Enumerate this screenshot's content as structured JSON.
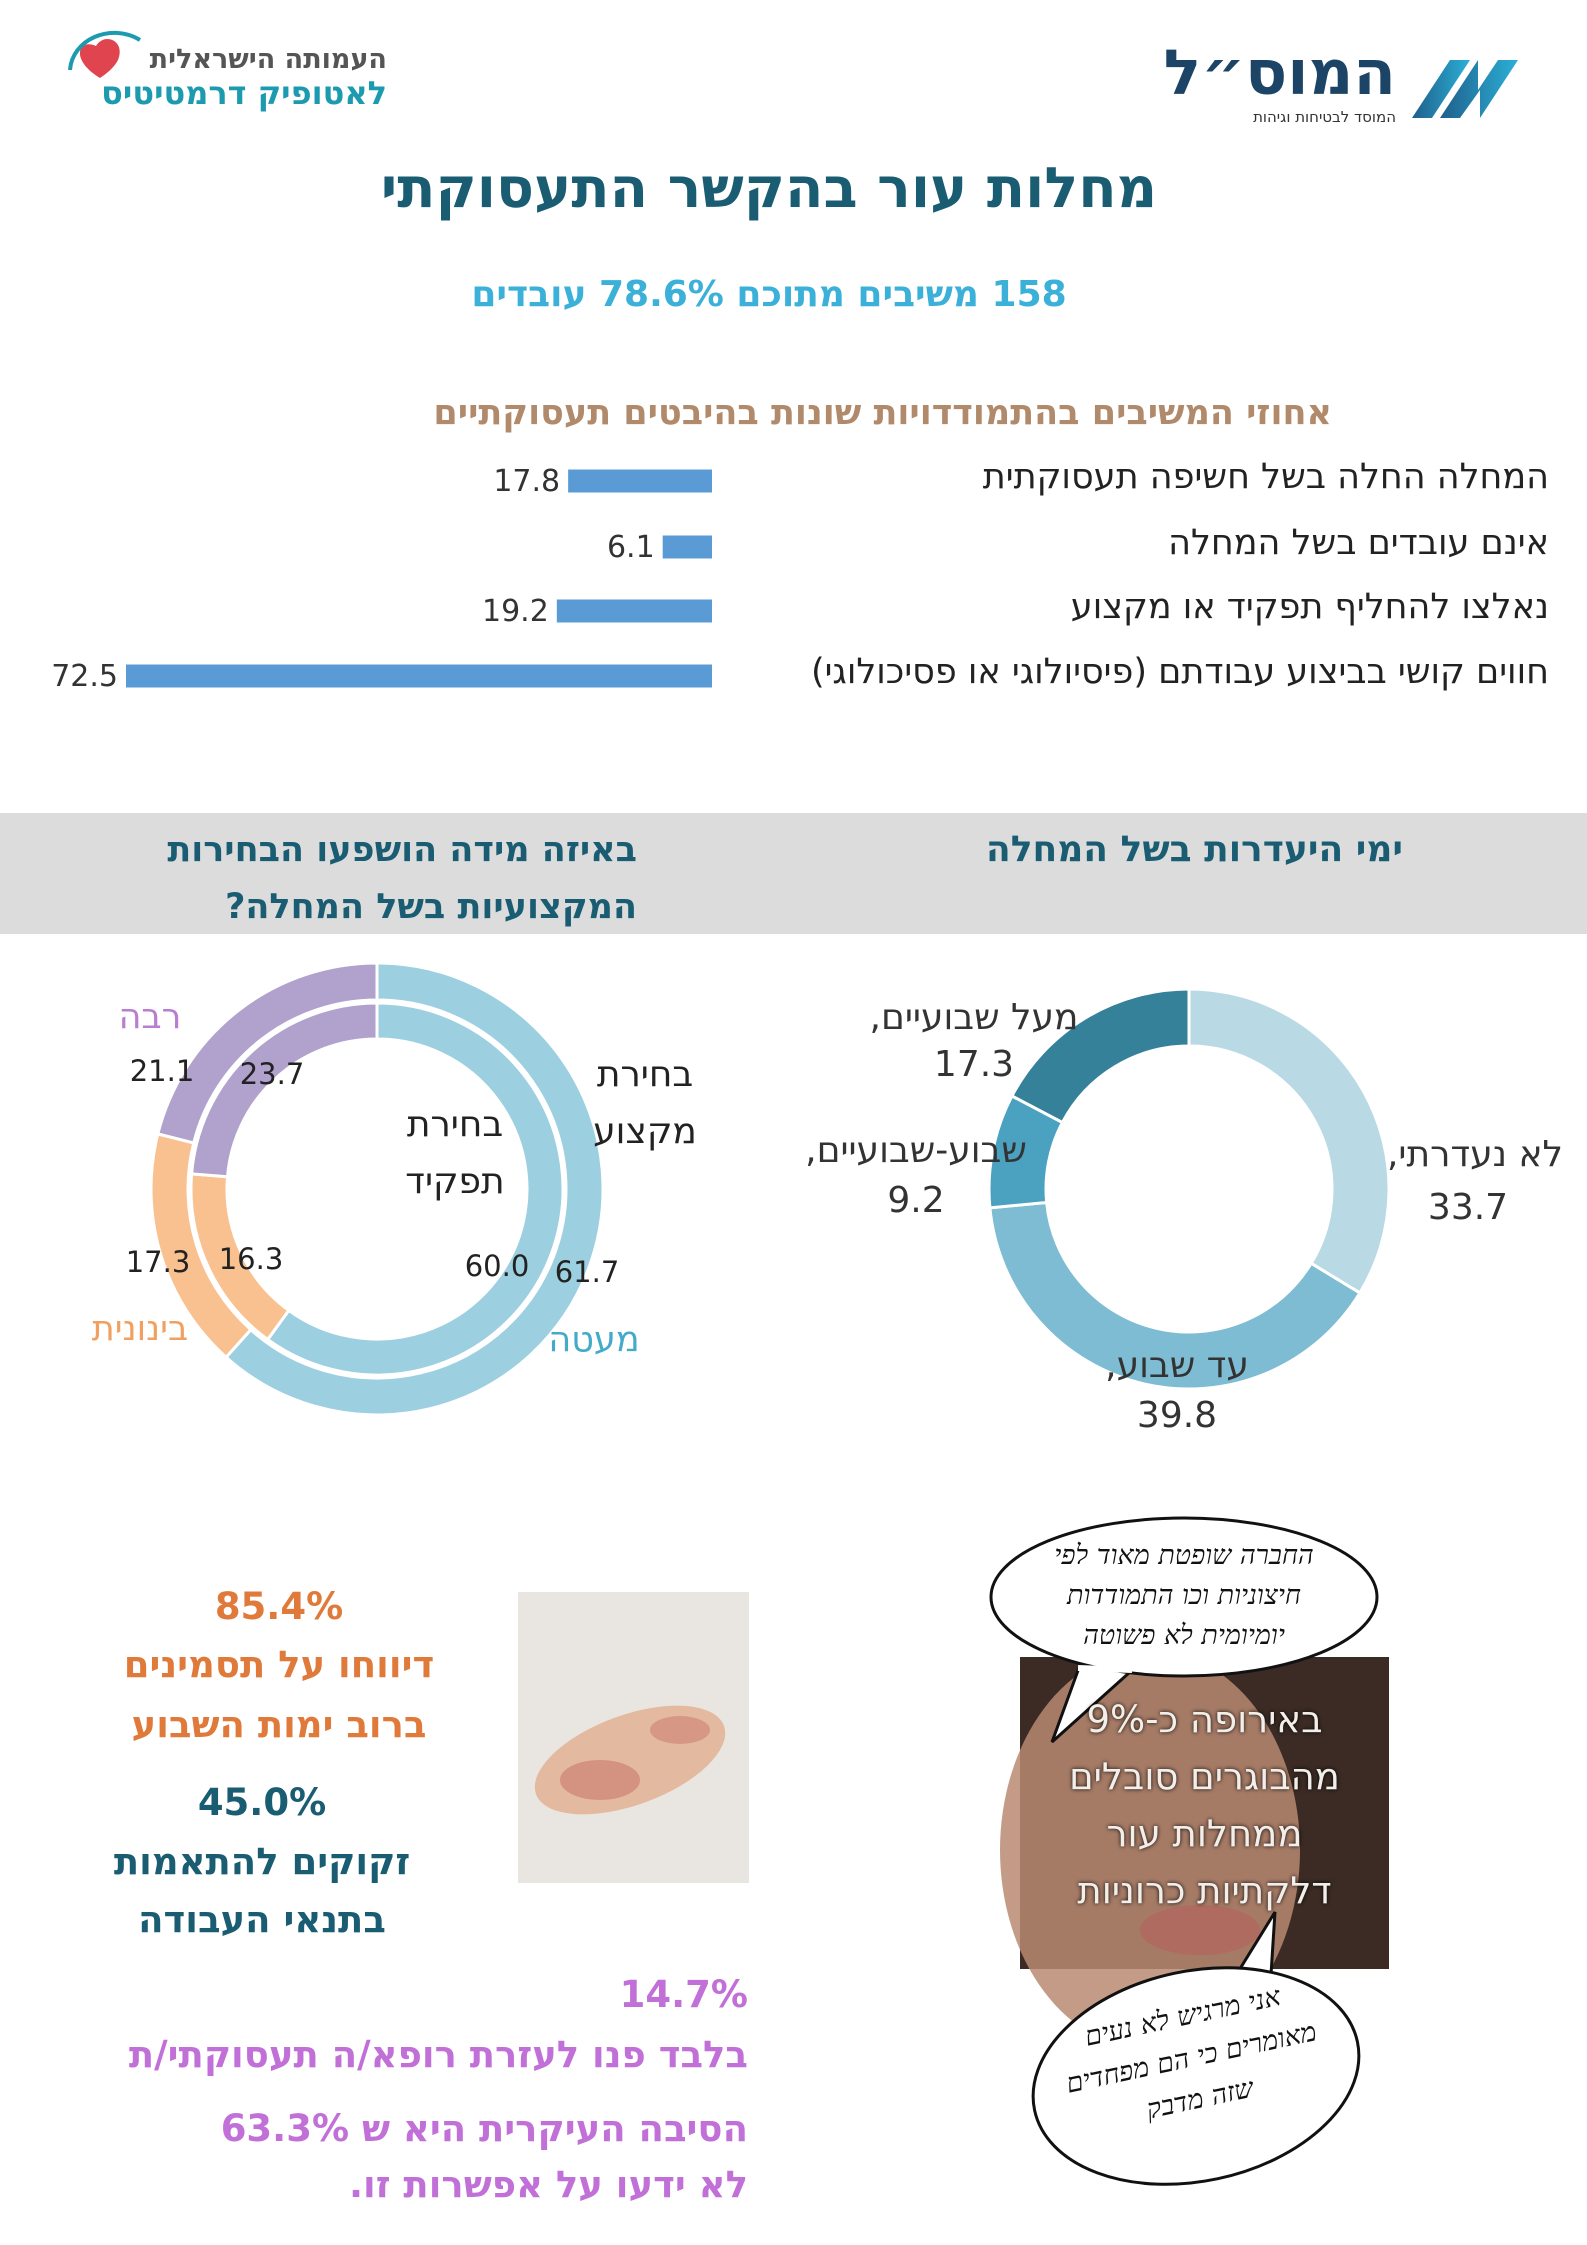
{
  "header": {
    "org_left_line1": "העמותה הישראלית",
    "org_left_line2": "לאטופיק דרמטיטיס",
    "org_right": "המוס״ל",
    "org_right_sub": "המוסד לבטיחות וגיהות"
  },
  "title": "מחלות עור בהקשר התעסוקתי",
  "subtitle": "158 משיבים מתוכם 78.6% עובדים",
  "chart_data": [
    {
      "type": "bar",
      "orientation": "horizontal",
      "title": "אחוזי המשיבים בהתמודדויות שונות בהיבטים תעסוקתיים",
      "categories": [
        "המחלה החלה בשל חשיפה תעסוקתית",
        "אינם עובדים בשל המחלה",
        "נאלצו להחליף תפקיד או מקצוע",
        "חווים קושי בביצוע עבודתם (פיסיולוגי או פסיכולוגי)"
      ],
      "values": [
        17.8,
        6.1,
        19.2,
        72.5
      ],
      "color": "#5b9bd5"
    },
    {
      "type": "donut",
      "title": "ימי היעדרות בשל המחלה",
      "categories": [
        "לא נעדרתי,",
        "עד שבוע,",
        "שבוע-שבועיים,",
        "מעל שבועיים,"
      ],
      "values": [
        33.7,
        39.8,
        9.2,
        17.3
      ],
      "colors": [
        "#b9d9e5",
        "#7dbcd2",
        "#4aa2c0",
        "#36819a"
      ]
    },
    {
      "type": "nested_donut",
      "title": "באיזה מידה הושפעו הבחירות המקצועיות בשל המחלה?",
      "categories": [
        "מעטה",
        "בינונית",
        "רבה"
      ],
      "colors": [
        "#9ccfe0",
        "#f9c18f",
        "#b0a2cc"
      ],
      "label_colors": [
        "#45a9c9",
        "#f0a060",
        "#b87fd0"
      ],
      "series": [
        {
          "name": "בחירת מקצוע",
          "values": [
            61.7,
            17.3,
            21.1
          ]
        },
        {
          "name": "בחירת תפקיד",
          "values": [
            60,
            16.3,
            23.7
          ],
          "value_labels": [
            "60.0",
            "16.3",
            "23.7"
          ]
        }
      ]
    }
  ],
  "stats": [
    {
      "value": "85.4%",
      "lines": [
        "דיווחו על תסמינים",
        "ברוב ימות השבוע"
      ]
    },
    {
      "value": "45.0%",
      "lines": [
        "זקוקים להתאמות",
        "בתנאי העבודה"
      ]
    },
    {
      "value": "14.7%",
      "lines": [
        "בלבד פנו לעזרת רופא/ה תעסוקתי/ת",
        "הסיבה העיקרית היא ש 63.3%",
        "לא ידעו על אפשרות זו."
      ]
    }
  ],
  "photo_caption": [
    "באירופה כ-9%",
    "מהבוגרים סובלים",
    "ממחלות עור",
    "דלקתיות כרוניות"
  ],
  "quotes": [
    [
      "החברה שופטת מאוד לפי",
      "חיצוניות וכו התמודדות",
      "יומיומית לא פשוטה"
    ],
    [
      "אני מרגיש לא נעים",
      "מאומרים כי הם מפחדים",
      "שזה מדבק"
    ]
  ]
}
